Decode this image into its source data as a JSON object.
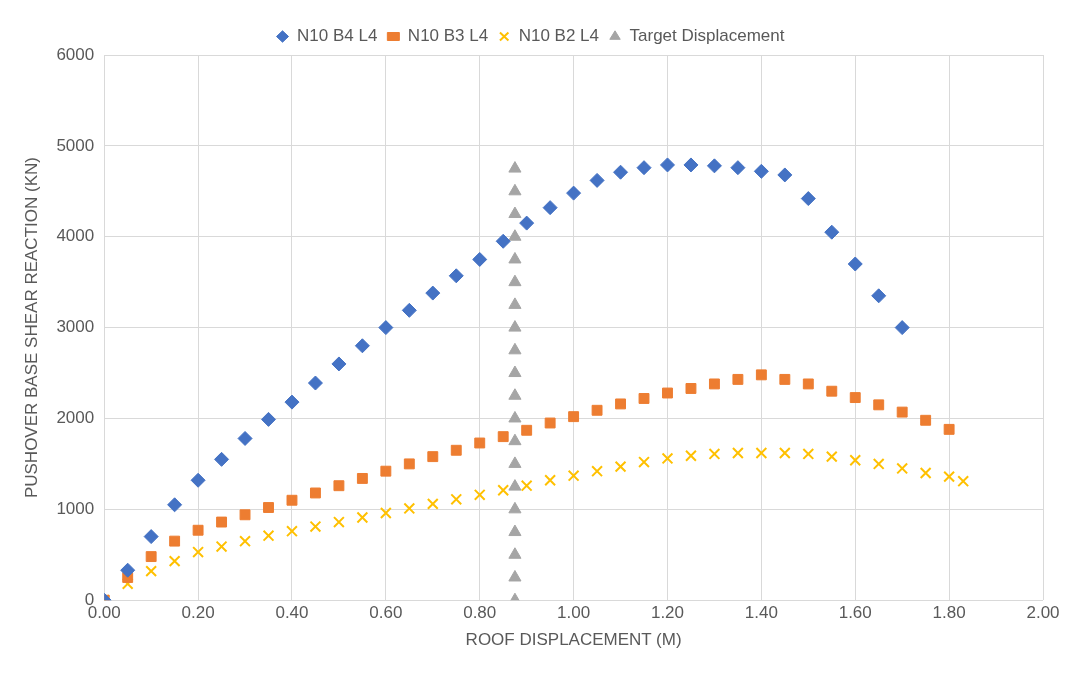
{
  "chart_data": {
    "type": "scatter",
    "xlabel": "ROOF DISPLACEMENT (M)",
    "ylabel": "PUSHOVER BASE SHEAR REACTION (KN)",
    "legend": "top",
    "grid": true,
    "xlim": [
      0,
      2
    ],
    "ylim": [
      0,
      6000
    ],
    "xticks": [
      {
        "value": 0,
        "label": "0.00"
      },
      {
        "value": 0.2,
        "label": "0.20"
      },
      {
        "value": 0.4,
        "label": "0.40"
      },
      {
        "value": 0.6,
        "label": "0.60"
      },
      {
        "value": 0.8,
        "label": "0.80"
      },
      {
        "value": 1,
        "label": "1.00"
      },
      {
        "value": 1.2,
        "label": "1.20"
      },
      {
        "value": 1.4,
        "label": "1.40"
      },
      {
        "value": 1.6,
        "label": "1.60"
      },
      {
        "value": 1.8,
        "label": "1.80"
      },
      {
        "value": 2,
        "label": "2.00"
      }
    ],
    "yticks": [
      0,
      1000,
      2000,
      3000,
      4000,
      5000,
      6000
    ],
    "series": [
      {
        "name": "N10 B4 L4",
        "color": "#4472c4",
        "marker": "diamond",
        "x": [
          0,
          0.05,
          0.1,
          0.15,
          0.2,
          0.25,
          0.3,
          0.35,
          0.4,
          0.45,
          0.5,
          0.55,
          0.6,
          0.65,
          0.7,
          0.75,
          0.8,
          0.85,
          0.9,
          0.95,
          1.0,
          1.05,
          1.1,
          1.15,
          1.2,
          1.25,
          1.3,
          1.35,
          1.4,
          1.45,
          1.5,
          1.55,
          1.6,
          1.65,
          1.7
        ],
        "values": [
          0,
          330,
          700,
          1050,
          1320,
          1550,
          1780,
          1990,
          2180,
          2390,
          2600,
          2800,
          3000,
          3190,
          3380,
          3570,
          3750,
          3950,
          4150,
          4320,
          4480,
          4620,
          4710,
          4760,
          4790,
          4790,
          4780,
          4760,
          4720,
          4680,
          4420,
          4050,
          3700,
          3350,
          3000
        ]
      },
      {
        "name": "N10 B3 L4",
        "color": "#ed7d31",
        "marker": "square",
        "x": [
          0,
          0.05,
          0.1,
          0.15,
          0.2,
          0.25,
          0.3,
          0.35,
          0.4,
          0.45,
          0.5,
          0.55,
          0.6,
          0.65,
          0.7,
          0.75,
          0.8,
          0.85,
          0.9,
          0.95,
          1.0,
          1.05,
          1.1,
          1.15,
          1.2,
          1.25,
          1.3,
          1.35,
          1.4,
          1.45,
          1.5,
          1.55,
          1.6,
          1.65,
          1.7,
          1.75,
          1.8
        ],
        "values": [
          0,
          250,
          480,
          650,
          770,
          860,
          940,
          1020,
          1100,
          1180,
          1260,
          1340,
          1420,
          1500,
          1580,
          1650,
          1730,
          1800,
          1870,
          1950,
          2020,
          2090,
          2160,
          2220,
          2280,
          2330,
          2380,
          2430,
          2480,
          2430,
          2380,
          2300,
          2230,
          2150,
          2070,
          1980,
          1880
        ]
      },
      {
        "name": "N10 B2 L4",
        "color": "#ffc000",
        "marker": "cross",
        "x": [
          0,
          0.05,
          0.1,
          0.15,
          0.2,
          0.25,
          0.3,
          0.35,
          0.4,
          0.45,
          0.5,
          0.55,
          0.6,
          0.65,
          0.7,
          0.75,
          0.8,
          0.85,
          0.9,
          0.95,
          1.0,
          1.05,
          1.1,
          1.15,
          1.2,
          1.25,
          1.3,
          1.35,
          1.4,
          1.45,
          1.5,
          1.55,
          1.6,
          1.65,
          1.7,
          1.75,
          1.8,
          1.83
        ],
        "values": [
          0,
          180,
          320,
          430,
          530,
          590,
          650,
          710,
          760,
          810,
          860,
          910,
          960,
          1010,
          1060,
          1110,
          1160,
          1210,
          1260,
          1320,
          1370,
          1420,
          1470,
          1520,
          1560,
          1590,
          1610,
          1620,
          1620,
          1620,
          1610,
          1580,
          1540,
          1500,
          1450,
          1400,
          1360,
          1310
        ]
      },
      {
        "name": "Target Displacement",
        "color": "#a5a5a5",
        "marker": "triangle",
        "x": [
          0.875,
          0.875,
          0.875,
          0.875,
          0.875,
          0.875,
          0.875,
          0.875,
          0.875,
          0.875,
          0.875,
          0.875,
          0.875,
          0.875,
          0.875,
          0.875,
          0.875,
          0.875,
          0.875,
          0.875
        ],
        "values": [
          0,
          250,
          500,
          750,
          1000,
          1250,
          1500,
          1750,
          2000,
          2250,
          2500,
          2750,
          3000,
          3250,
          3500,
          3750,
          4000,
          4250,
          4500,
          4750
        ]
      }
    ]
  }
}
